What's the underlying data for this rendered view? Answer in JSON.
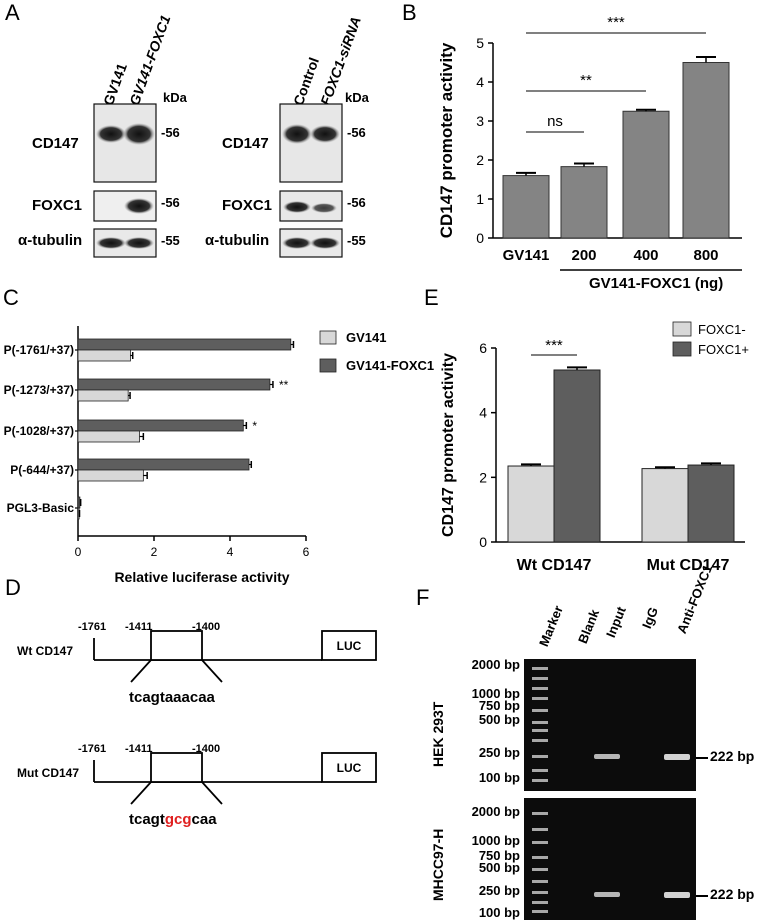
{
  "panels": {
    "a": {
      "letter": "A",
      "left_blot": {
        "lanes": [
          "GV141",
          "GV141-FOXC1"
        ],
        "unit": "kDa",
        "rows": [
          {
            "label": "CD147",
            "mw": "-56"
          },
          {
            "label": "FOXC1",
            "mw": "-56"
          },
          {
            "label": "α-tubulin",
            "mw": "-55"
          }
        ]
      },
      "right_blot": {
        "lanes": [
          "Control",
          "FOXC1-siRNA"
        ],
        "unit": "kDa",
        "rows": [
          {
            "label": "CD147",
            "mw": "-56"
          },
          {
            "label": "FOXC1",
            "mw": "-56"
          },
          {
            "label": "α-tubulin",
            "mw": "-55"
          }
        ]
      }
    },
    "b": {
      "letter": "B",
      "group_label": "GV141-FOXC1 (ng)"
    },
    "c": {
      "letter": "C"
    },
    "d": {
      "letter": "D",
      "constructs": [
        {
          "name": "Wt CD147",
          "pos1": "-1761",
          "pos2": "-1411",
          "pos3": "-1400",
          "box_label": "LUC",
          "seq_parts": [
            {
              "text": "tcagtaaacaa",
              "mutant": false
            }
          ]
        },
        {
          "name": "Mut CD147",
          "pos1": "-1761",
          "pos2": "-1411",
          "pos3": "-1400",
          "box_label": "LUC",
          "seq_parts": [
            {
              "text": "tcagt",
              "mutant": false
            },
            {
              "text": "gcg",
              "mutant": true
            },
            {
              "text": "caa",
              "mutant": false
            }
          ]
        }
      ]
    },
    "e": {
      "letter": "E"
    },
    "f": {
      "letter": "F",
      "lanes": [
        "Marker",
        "Blank",
        "Input",
        "IgG",
        "Anti-FOXC1"
      ],
      "gels": [
        {
          "cell_line": "HEK 293T",
          "ladder": [
            "2000 bp",
            "1000 bp",
            "750 bp",
            "500 bp",
            "250 bp",
            "100 bp"
          ],
          "band_label": "222 bp"
        },
        {
          "cell_line": "MHCC97-H",
          "ladder": [
            "2000 bp",
            "1000 bp",
            "750 bp",
            "500 bp",
            "250 bp",
            "100 bp"
          ],
          "band_label": "222 bp"
        }
      ]
    }
  },
  "chart_data": [
    {
      "id": "B",
      "type": "bar",
      "ylabel": "CD147 promoter activity",
      "categories": [
        "GV141",
        "200",
        "400",
        "800"
      ],
      "values": [
        1.6,
        1.83,
        3.25,
        4.5
      ],
      "errors": [
        0.07,
        0.08,
        0.04,
        0.14
      ],
      "ylim": [
        0,
        5
      ],
      "yticks": [
        "0",
        "1",
        "2",
        "3",
        "4",
        "5"
      ],
      "bar_color": "#848484",
      "significance": [
        {
          "from": 0,
          "to": 1,
          "label": "ns"
        },
        {
          "from": 0,
          "to": 2,
          "label": "**"
        },
        {
          "from": 0,
          "to": 3,
          "label": "***"
        }
      ]
    },
    {
      "id": "C",
      "type": "bar",
      "orientation": "horizontal",
      "xlabel": "Relative luciferase activity",
      "categories": [
        "P(-1761/+37)",
        "P(-1273/+37)",
        "P(-1028/+37)",
        "P(-644/+37)",
        "PGL3-Basic"
      ],
      "xlim": [
        0,
        6
      ],
      "xticks": [
        "0",
        "2",
        "4",
        "6"
      ],
      "series": [
        {
          "name": "GV141-FOXC1",
          "color": "#5e5e5e",
          "values": [
            5.6,
            5.05,
            4.35,
            4.5,
            0.05
          ],
          "errors": [
            0.07,
            0.08,
            0.08,
            0.06,
            0.02
          ]
        },
        {
          "name": "GV141",
          "color": "#d8d8d8",
          "values": [
            1.38,
            1.32,
            1.62,
            1.72,
            0.03
          ],
          "errors": [
            0.06,
            0.05,
            0.1,
            0.1,
            0.01
          ]
        }
      ],
      "legend": [
        "GV141",
        "GV141-FOXC1"
      ],
      "annotations": [
        {
          "category": "P(-1273/+37)",
          "text": "**"
        },
        {
          "category": "P(-1028/+37)",
          "text": "*"
        }
      ]
    },
    {
      "id": "E",
      "type": "bar",
      "ylabel": "CD147 promoter activity",
      "categories": [
        "Wt CD147",
        "Mut CD147"
      ],
      "ylim": [
        0,
        6
      ],
      "yticks": [
        "0",
        "2",
        "4",
        "6"
      ],
      "series": [
        {
          "name": "FOXC1-",
          "color": "#d8d8d8",
          "values": [
            2.35,
            2.27
          ],
          "errors": [
            0.05,
            0.04
          ]
        },
        {
          "name": "FOXC1+",
          "color": "#5e5e5e",
          "values": [
            5.32,
            2.38
          ],
          "errors": [
            0.08,
            0.05
          ]
        }
      ],
      "legend_position": "top-right",
      "significance": [
        {
          "category": "Wt CD147",
          "label": "***"
        }
      ]
    }
  ]
}
